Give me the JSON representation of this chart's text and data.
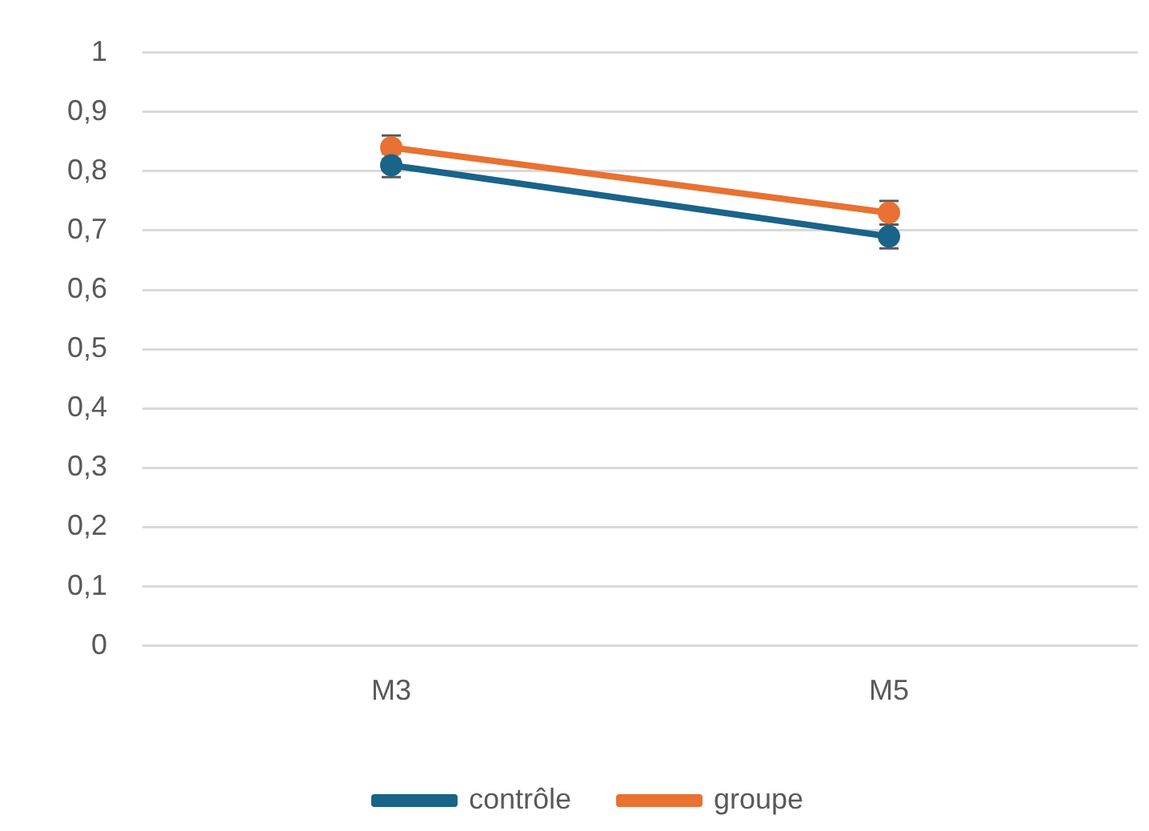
{
  "chart_data": {
    "type": "line",
    "categories": [
      "M3",
      "M5"
    ],
    "series": [
      {
        "name": "contrôle",
        "color": "#1a6389",
        "values": [
          0.81,
          0.69
        ],
        "errors": [
          0.02,
          0.02
        ]
      },
      {
        "name": "groupe",
        "color": "#e97132",
        "values": [
          0.84,
          0.73
        ],
        "errors": [
          0.02,
          0.02
        ]
      }
    ],
    "ylim": [
      0,
      1
    ],
    "yticks": [
      {
        "value": 0,
        "label": "0"
      },
      {
        "value": 0.1,
        "label": "0,1"
      },
      {
        "value": 0.2,
        "label": "0,2"
      },
      {
        "value": 0.3,
        "label": "0,3"
      },
      {
        "value": 0.4,
        "label": "0,4"
      },
      {
        "value": 0.5,
        "label": "0,5"
      },
      {
        "value": 0.6,
        "label": "0,6"
      },
      {
        "value": 0.7,
        "label": "0,7"
      },
      {
        "value": 0.8,
        "label": "0,8"
      },
      {
        "value": 0.9,
        "label": "0,9"
      },
      {
        "value": 1,
        "label": "1"
      }
    ],
    "grid": "y",
    "legend": "bottom",
    "marker": "circle",
    "line_style": "solid"
  }
}
